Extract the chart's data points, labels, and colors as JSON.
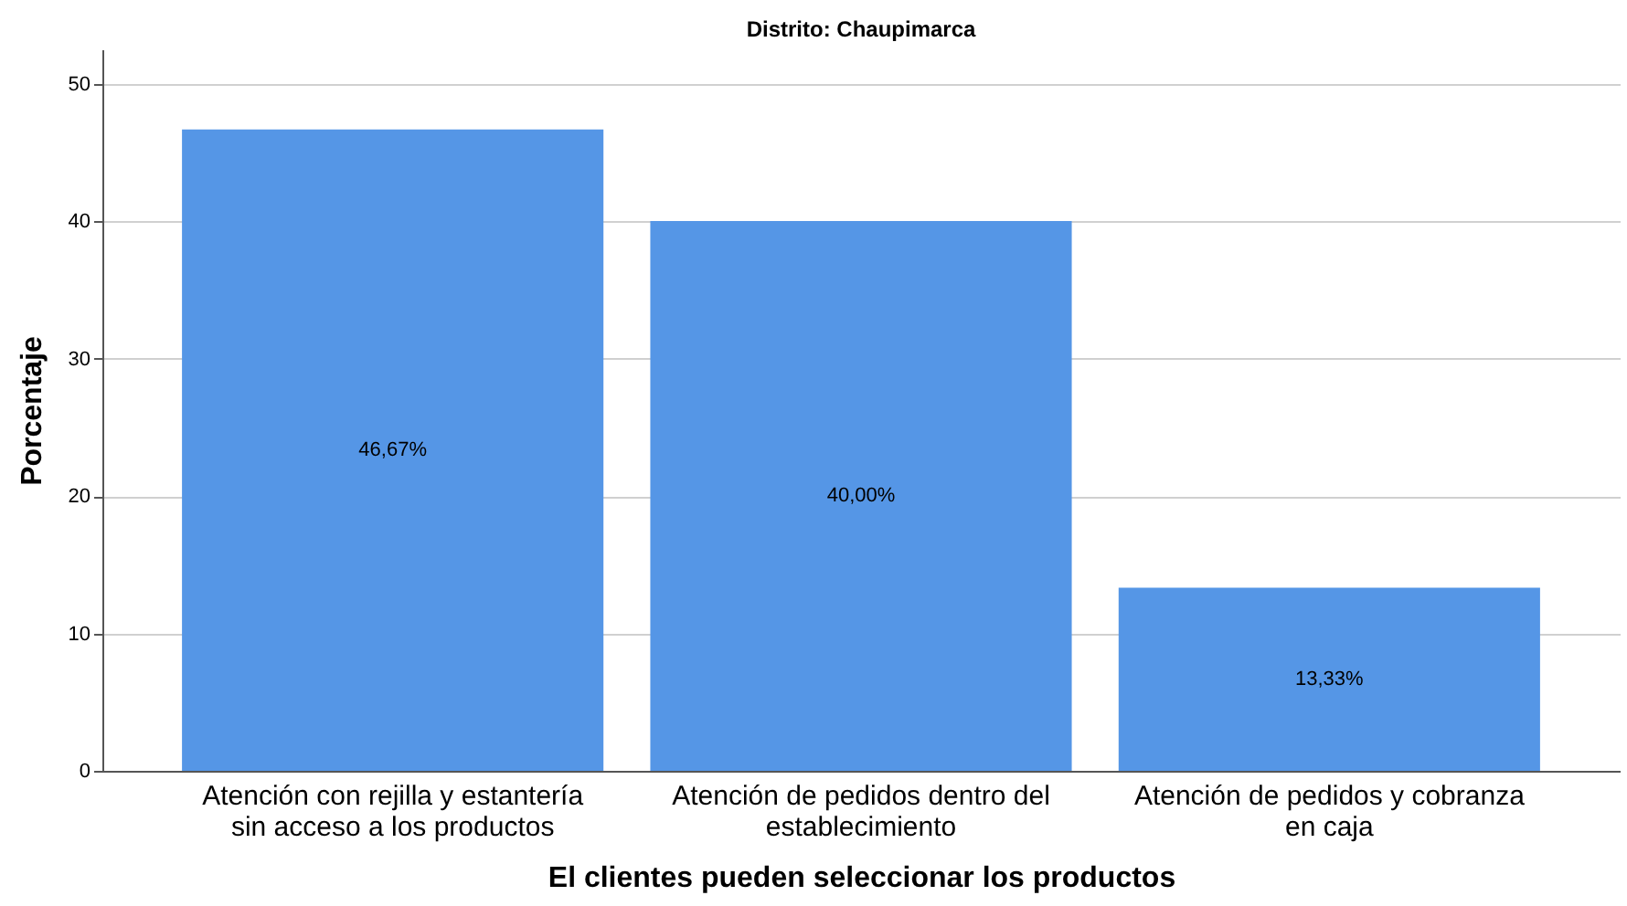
{
  "chart_data": {
    "type": "bar",
    "title": "Distrito: Chaupimarca",
    "xlabel": "El clientes pueden seleccionar los productos",
    "ylabel": "Porcentaje",
    "categories": [
      "Atención con rejilla y estantería\nsin acceso a los productos",
      "Atención de pedidos dentro del\nestablecimiento",
      "Atención de pedidos y cobranza\nen caja"
    ],
    "values": [
      46.67,
      40.0,
      13.33
    ],
    "value_labels": [
      "46,67%",
      "40,00%",
      "13,33%"
    ],
    "color": "#5596e6",
    "ylim": [
      0,
      52.5
    ],
    "yticks": [
      0,
      10,
      20,
      30,
      40,
      50
    ],
    "grid": "y"
  }
}
